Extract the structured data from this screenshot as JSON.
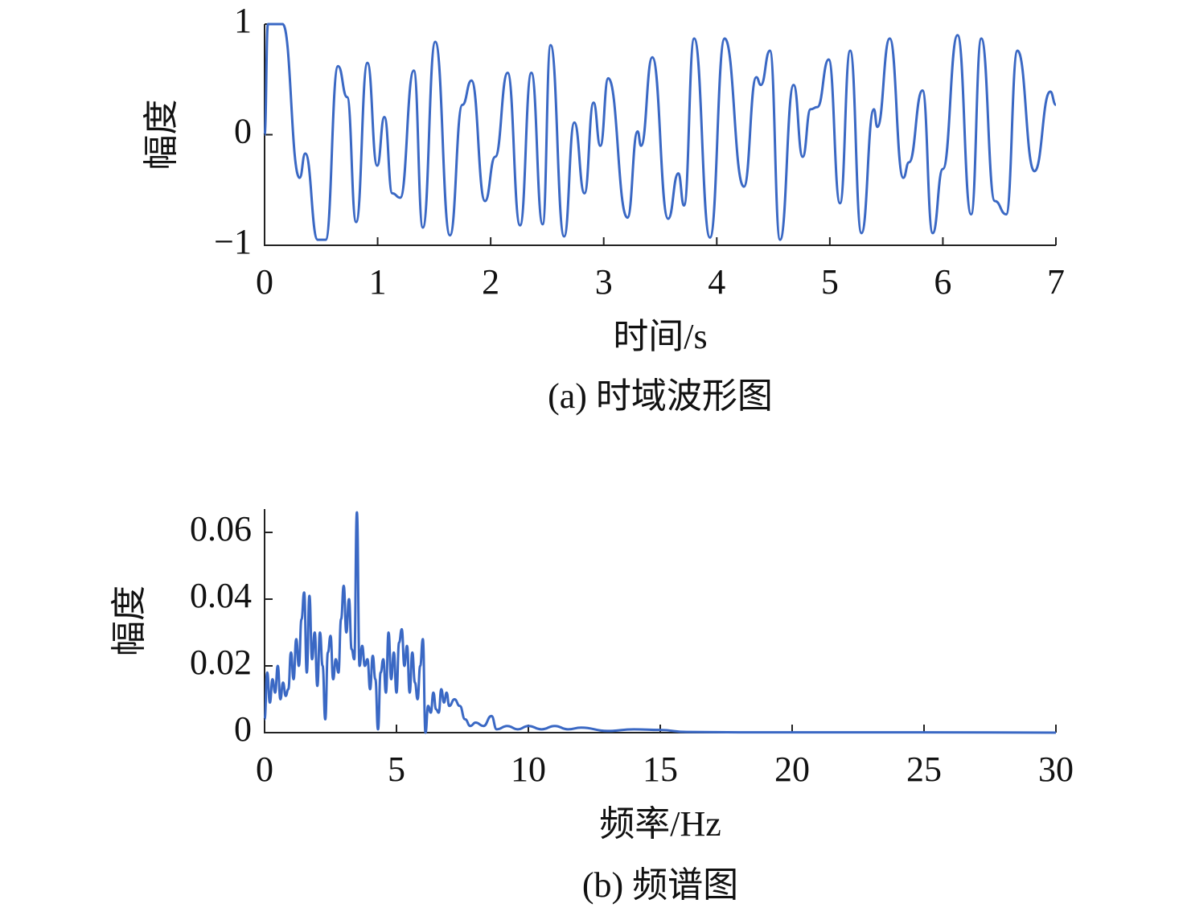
{
  "chart_data": [
    {
      "type": "line",
      "caption": "(a) 时域波形图",
      "xlabel": "时间/s",
      "ylabel": "幅度",
      "color": "#3a68c4",
      "x": [
        0,
        0.03,
        0.16,
        0.31,
        0.36,
        0.47,
        0.54,
        0.65,
        0.73,
        0.81,
        0.91,
        0.996,
        1.06,
        1.13,
        1.2,
        1.32,
        1.4,
        1.51,
        1.64,
        1.75,
        1.83,
        1.95,
        2.04,
        2.15,
        2.26,
        2.36,
        2.46,
        2.53,
        2.65,
        2.74,
        2.83,
        2.91,
        2.97,
        3.04,
        3.21,
        3.3,
        3.33,
        3.43,
        3.57,
        3.66,
        3.71,
        3.8,
        3.94,
        4.07,
        4.24,
        4.35,
        4.39,
        4.47,
        4.56,
        4.68,
        4.76,
        4.83,
        4.89,
        4.99,
        5.09,
        5.18,
        5.28,
        5.39,
        5.42,
        5.53,
        5.65,
        5.7,
        5.82,
        5.91,
        6.0,
        6.13,
        6.25,
        6.34,
        6.46,
        6.56,
        6.66,
        6.81,
        6.95,
        7.0
      ],
      "values": [
        0,
        1,
        1,
        -0.39,
        -0.17,
        -0.95,
        -0.95,
        0.62,
        0.34,
        -0.79,
        0.65,
        -0.28,
        0.16,
        -0.53,
        -0.57,
        0.58,
        -0.84,
        0.84,
        -0.91,
        0.27,
        0.49,
        -0.6,
        -0.2,
        0.56,
        -0.82,
        0.56,
        -0.81,
        0.81,
        -0.92,
        0.11,
        -0.53,
        0.29,
        -0.1,
        0.51,
        -0.75,
        0.03,
        -0.1,
        0.7,
        -0.76,
        -0.35,
        -0.64,
        0.87,
        -0.93,
        0.87,
        -0.47,
        0.52,
        0.45,
        0.76,
        -0.95,
        0.45,
        -0.2,
        0.23,
        0.25,
        0.68,
        -0.62,
        0.76,
        -0.89,
        0.23,
        0.07,
        0.87,
        -0.39,
        -0.25,
        0.4,
        -0.89,
        -0.31,
        0.9,
        -0.72,
        0.87,
        -0.6,
        -0.72,
        0.76,
        -0.33,
        0.39,
        0.27
      ],
      "xlim": [
        0,
        7
      ],
      "xticks": [
        0,
        1,
        2,
        3,
        4,
        5,
        6,
        7
      ],
      "ylim": [
        -1,
        1
      ],
      "yticks": [
        {
          "value": -1,
          "label": "−1"
        },
        0,
        1
      ]
    },
    {
      "type": "line",
      "caption": "(b) 频谱图",
      "xlabel": "频率/Hz",
      "ylabel": "幅度",
      "color": "#3a68c4",
      "x": [
        0,
        0.1,
        0.2,
        0.3,
        0.4,
        0.5,
        0.6,
        0.7,
        0.8,
        0.9,
        1.0,
        1.1,
        1.2,
        1.3,
        1.4,
        1.5,
        1.6,
        1.7,
        1.8,
        1.9,
        2.0,
        2.1,
        2.2,
        2.3,
        2.4,
        2.5,
        2.6,
        2.7,
        2.8,
        2.9,
        3.0,
        3.1,
        3.2,
        3.3,
        3.4,
        3.5,
        3.6,
        3.7,
        3.8,
        3.9,
        4.0,
        4.1,
        4.2,
        4.3,
        4.4,
        4.5,
        4.6,
        4.7,
        4.8,
        4.9,
        5.0,
        5.1,
        5.2,
        5.3,
        5.4,
        5.5,
        5.6,
        5.7,
        5.8,
        5.9,
        6.0,
        6.1,
        6.2,
        6.3,
        6.4,
        6.5,
        6.6,
        6.7,
        6.8,
        6.9,
        7.0,
        7.2,
        7.4,
        7.6,
        7.8,
        8.0,
        8.3,
        8.6,
        8.8,
        9.2,
        9.6,
        10,
        10.5,
        11,
        11.5,
        12,
        13,
        14,
        15,
        16,
        18,
        20,
        25,
        30
      ],
      "values": [
        0.004,
        0.018,
        0.009,
        0.016,
        0.012,
        0.02,
        0.01,
        0.015,
        0.011,
        0.013,
        0.024,
        0.016,
        0.028,
        0.02,
        0.034,
        0.042,
        0.018,
        0.041,
        0.022,
        0.03,
        0.014,
        0.03,
        0.02,
        0.004,
        0.024,
        0.029,
        0.016,
        0.022,
        0.018,
        0.034,
        0.044,
        0.03,
        0.04,
        0.025,
        0.022,
        0.066,
        0.02,
        0.026,
        0.02,
        0.022,
        0.013,
        0.023,
        0.016,
        0.001,
        0.018,
        0.022,
        0.012,
        0.03,
        0.016,
        0.024,
        0.012,
        0.027,
        0.031,
        0.02,
        0.026,
        0.012,
        0.024,
        0.015,
        0.01,
        0.02,
        0.028,
        0,
        0.008,
        0.006,
        0.012,
        0.007,
        0.006,
        0.013,
        0.009,
        0.012,
        0.008,
        0.01,
        0.008,
        0.004,
        0.002,
        0.003,
        0.002,
        0.005,
        0.001,
        0.002,
        0.001,
        0.002,
        0.001,
        0.002,
        0.001,
        0.0015,
        0.0005,
        0.001,
        0.0008,
        0.0002,
        0.0001,
        0.0001,
        0.0001,
        0
      ],
      "xlim": [
        0,
        30
      ],
      "xticks": [
        0,
        5,
        10,
        15,
        20,
        25,
        30
      ],
      "ylim": [
        0,
        0.067
      ],
      "yticks": [
        0,
        0.02,
        0.04,
        0.06
      ]
    }
  ]
}
